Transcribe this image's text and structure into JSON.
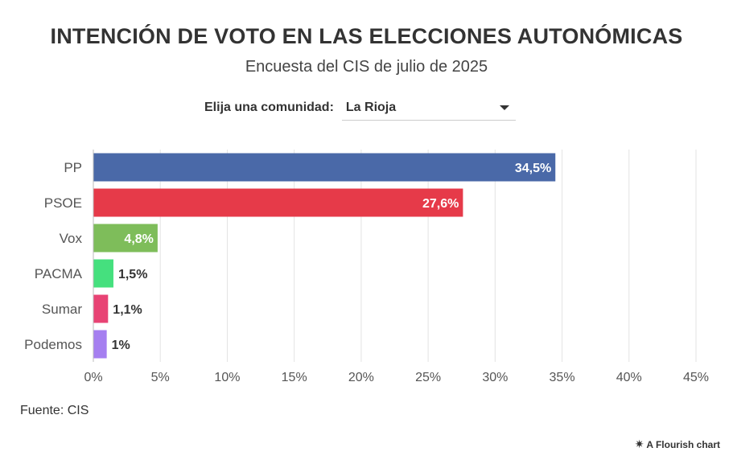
{
  "title": "INTENCIÓN DE VOTO EN LAS ELECCIONES AUTONÓMICAS",
  "subtitle": "Encuesta del CIS de julio de 2025",
  "selector": {
    "label": "Elija una comunidad:",
    "value": "La Rioja"
  },
  "source": "Fuente: CIS",
  "credit": {
    "icon": "flourish-icon",
    "text": "A Flourish chart"
  },
  "chart_data": {
    "type": "bar",
    "orientation": "horizontal",
    "title": "INTENCIÓN DE VOTO EN LAS ELECCIONES AUTONÓMICAS",
    "categories": [
      "PP",
      "PSOE",
      "Vox",
      "PACMA",
      "Sumar",
      "Podemos"
    ],
    "values": [
      34.5,
      27.6,
      4.8,
      1.5,
      1.1,
      1.0
    ],
    "value_labels": [
      "34,5%",
      "27,6%",
      "4,8%",
      "1,5%",
      "1,1%",
      "1%"
    ],
    "colors": [
      "#4a69a8",
      "#e63a49",
      "#7ebd5a",
      "#45e07e",
      "#e84374",
      "#a57ff0"
    ],
    "xlim": [
      0,
      45
    ],
    "xticks": [
      0,
      5,
      10,
      15,
      20,
      25,
      30,
      35,
      40,
      45
    ],
    "xtick_labels": [
      "0%",
      "5%",
      "10%",
      "15%",
      "20%",
      "25%",
      "30%",
      "35%",
      "40%",
      "45%"
    ],
    "xlabel": "",
    "ylabel": "",
    "grid": true
  }
}
